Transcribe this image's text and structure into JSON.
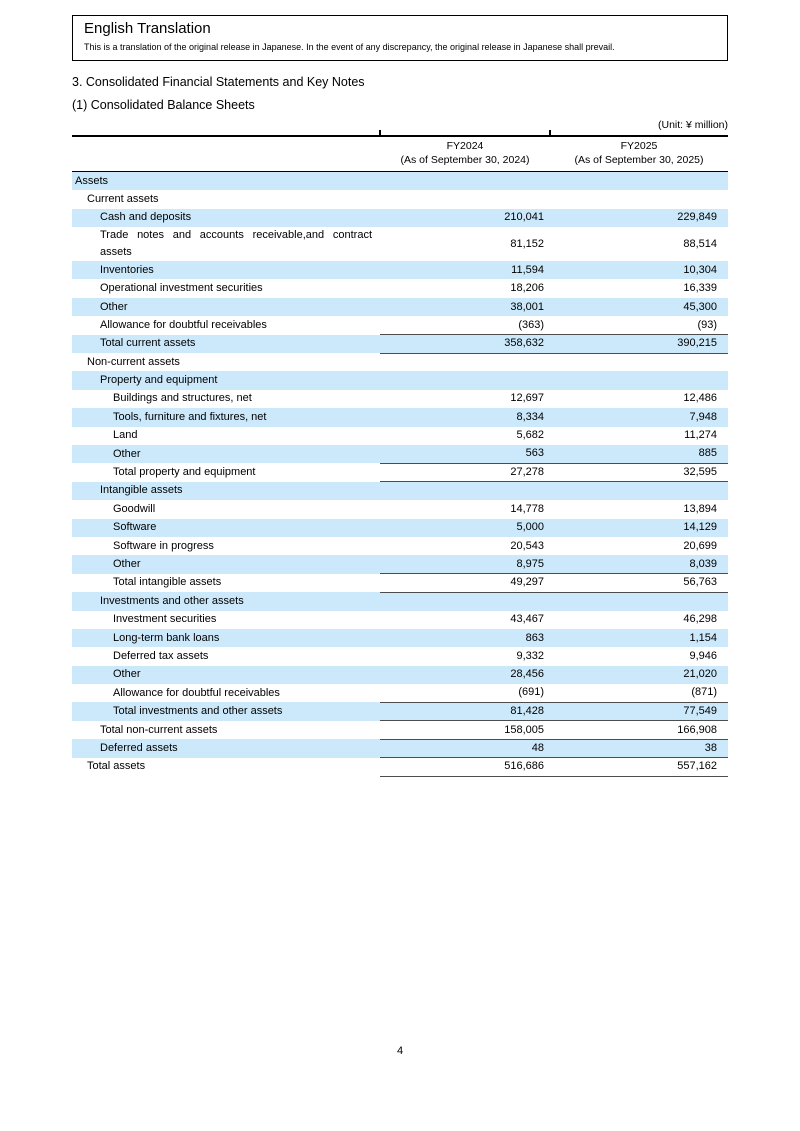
{
  "colors": {
    "row_highlight": "#cce9fb",
    "rule": "#4d4d4d"
  },
  "translation_box": {
    "title": "English Translation",
    "body": "This is a translation of the original release in Japanese. In the event of any discrepancy, the original release in Japanese shall prevail."
  },
  "section_title": "3. Consolidated Financial Statements and Key Notes",
  "subsection_title": "(1) Consolidated Balance Sheets",
  "unit_note": "(Unit: ¥ million)",
  "page_number": "4",
  "table": {
    "columns": [
      {
        "line1": "FY2024",
        "line2": "(As of September 30, 2024)"
      },
      {
        "line1": "FY2025",
        "line2": "(As of September 30, 2025)"
      }
    ],
    "rows": [
      {
        "label": "Assets",
        "indent": 0,
        "shaded": true,
        "rule_above": false,
        "rule_below": false,
        "fy2024": "",
        "fy2025": ""
      },
      {
        "label": "Current assets",
        "indent": 1,
        "shaded": false,
        "rule_above": false,
        "rule_below": false,
        "fy2024": "",
        "fy2025": ""
      },
      {
        "label": "Cash and deposits",
        "indent": 2,
        "shaded": true,
        "rule_above": false,
        "rule_below": false,
        "fy2024": "210,041",
        "fy2025": "229,849"
      },
      {
        "label": "Trade notes and accounts receivable,and contract assets",
        "indent": 2,
        "shaded": false,
        "rule_above": false,
        "rule_below": false,
        "fy2024": "81,152",
        "fy2025": "88,514"
      },
      {
        "label": "Inventories",
        "indent": 2,
        "shaded": true,
        "rule_above": false,
        "rule_below": false,
        "fy2024": "11,594",
        "fy2025": "10,304"
      },
      {
        "label": "Operational investment securities",
        "indent": 2,
        "shaded": false,
        "rule_above": false,
        "rule_below": false,
        "fy2024": "18,206",
        "fy2025": "16,339"
      },
      {
        "label": "Other",
        "indent": 2,
        "shaded": true,
        "rule_above": false,
        "rule_below": false,
        "fy2024": "38,001",
        "fy2025": "45,300"
      },
      {
        "label": "Allowance for doubtful receivables",
        "indent": 2,
        "shaded": false,
        "rule_above": false,
        "rule_below": false,
        "fy2024": "(363)",
        "fy2025": "(93)"
      },
      {
        "label": "Total current assets",
        "indent": 2,
        "shaded": true,
        "rule_above": true,
        "rule_below": true,
        "fy2024": "358,632",
        "fy2025": "390,215"
      },
      {
        "label": "Non-current assets",
        "indent": 1,
        "shaded": false,
        "rule_above": false,
        "rule_below": false,
        "fy2024": "",
        "fy2025": ""
      },
      {
        "label": "Property and equipment",
        "indent": 2,
        "shaded": true,
        "rule_above": false,
        "rule_below": false,
        "fy2024": "",
        "fy2025": ""
      },
      {
        "label": "Buildings and structures, net",
        "indent": 3,
        "shaded": false,
        "rule_above": false,
        "rule_below": false,
        "fy2024": "12,697",
        "fy2025": "12,486"
      },
      {
        "label": "Tools, furniture and fixtures, net",
        "indent": 3,
        "shaded": true,
        "rule_above": false,
        "rule_below": false,
        "fy2024": "8,334",
        "fy2025": "7,948"
      },
      {
        "label": "Land",
        "indent": 3,
        "shaded": false,
        "rule_above": false,
        "rule_below": false,
        "fy2024": "5,682",
        "fy2025": "11,274"
      },
      {
        "label": "Other",
        "indent": 3,
        "shaded": true,
        "rule_above": false,
        "rule_below": false,
        "fy2024": "563",
        "fy2025": "885"
      },
      {
        "label": "Total property and equipment",
        "indent": 3,
        "shaded": false,
        "rule_above": true,
        "rule_below": true,
        "fy2024": "27,278",
        "fy2025": "32,595"
      },
      {
        "label": "Intangible assets",
        "indent": 2,
        "shaded": true,
        "rule_above": false,
        "rule_below": false,
        "fy2024": "",
        "fy2025": ""
      },
      {
        "label": "Goodwill",
        "indent": 3,
        "shaded": false,
        "rule_above": false,
        "rule_below": false,
        "fy2024": "14,778",
        "fy2025": "13,894"
      },
      {
        "label": "Software",
        "indent": 3,
        "shaded": true,
        "rule_above": false,
        "rule_below": false,
        "fy2024": "5,000",
        "fy2025": "14,129"
      },
      {
        "label": "Software in progress",
        "indent": 3,
        "shaded": false,
        "rule_above": false,
        "rule_below": false,
        "fy2024": "20,543",
        "fy2025": "20,699"
      },
      {
        "label": "Other",
        "indent": 3,
        "shaded": true,
        "rule_above": false,
        "rule_below": false,
        "fy2024": "8,975",
        "fy2025": "8,039"
      },
      {
        "label": "Total intangible assets",
        "indent": 3,
        "shaded": false,
        "rule_above": true,
        "rule_below": true,
        "fy2024": "49,297",
        "fy2025": "56,763"
      },
      {
        "label": "Investments and other assets",
        "indent": 2,
        "shaded": true,
        "rule_above": false,
        "rule_below": false,
        "fy2024": "",
        "fy2025": ""
      },
      {
        "label": "Investment securities",
        "indent": 3,
        "shaded": false,
        "rule_above": false,
        "rule_below": false,
        "fy2024": "43,467",
        "fy2025": "46,298"
      },
      {
        "label": "Long-term bank loans",
        "indent": 3,
        "shaded": true,
        "rule_above": false,
        "rule_below": false,
        "fy2024": "863",
        "fy2025": "1,154"
      },
      {
        "label": "Deferred tax assets",
        "indent": 3,
        "shaded": false,
        "rule_above": false,
        "rule_below": false,
        "fy2024": "9,332",
        "fy2025": "9,946"
      },
      {
        "label": "Other",
        "indent": 3,
        "shaded": true,
        "rule_above": false,
        "rule_below": false,
        "fy2024": "28,456",
        "fy2025": "21,020"
      },
      {
        "label": "Allowance for doubtful receivables",
        "indent": 3,
        "shaded": false,
        "rule_above": false,
        "rule_below": false,
        "fy2024": "(691)",
        "fy2025": "(871)"
      },
      {
        "label": "Total investments and other assets",
        "indent": 3,
        "shaded": true,
        "rule_above": true,
        "rule_below": true,
        "fy2024": "81,428",
        "fy2025": "77,549"
      },
      {
        "label": "Total non-current assets",
        "indent": 2,
        "shaded": false,
        "rule_above": true,
        "rule_below": true,
        "fy2024": "158,005",
        "fy2025": "166,908"
      },
      {
        "label": "Deferred assets",
        "indent": 2,
        "shaded": true,
        "rule_above": true,
        "rule_below": true,
        "fy2024": "48",
        "fy2025": "38"
      },
      {
        "label": "Total assets",
        "indent": 1,
        "shaded": false,
        "rule_above": true,
        "rule_below": true,
        "fy2024": "516,686",
        "fy2025": "557,162"
      }
    ]
  }
}
